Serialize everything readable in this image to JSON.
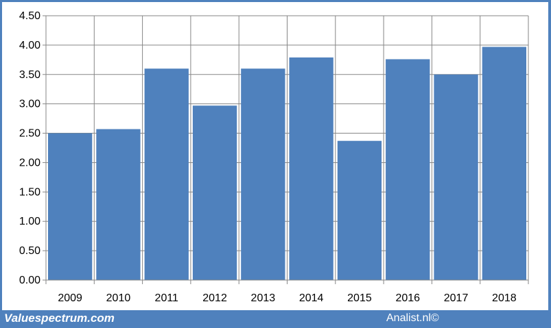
{
  "chart_data": {
    "type": "bar",
    "categories": [
      "2009",
      "2010",
      "2011",
      "2012",
      "2013",
      "2014",
      "2015",
      "2016",
      "2017",
      "2018"
    ],
    "values": [
      2.5,
      2.57,
      3.6,
      2.97,
      3.6,
      3.79,
      2.37,
      3.76,
      3.5,
      3.97
    ],
    "y_ticks": [
      "0.00",
      "0.50",
      "1.00",
      "1.50",
      "2.00",
      "2.50",
      "3.00",
      "3.50",
      "4.00",
      "4.50"
    ],
    "ylim": [
      0,
      4.5
    ],
    "grid": true,
    "bar_color": "#4f81bd",
    "gridline_color": "#868686",
    "legend": "none"
  },
  "footer": {
    "left_text": "Valuespectrum.com",
    "right_text": "Analist.nl©"
  },
  "colors": {
    "frame": "#4f81bd",
    "panel": "#ffffff"
  }
}
